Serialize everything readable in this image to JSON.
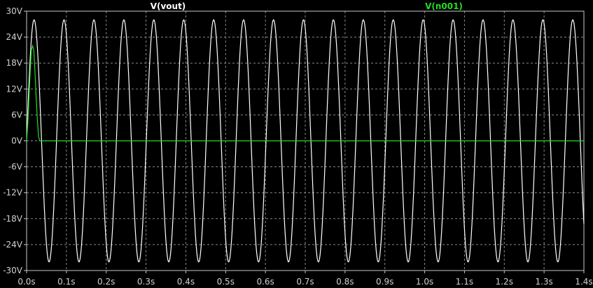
{
  "chart_data": {
    "type": "line",
    "xlim": [
      0,
      1.4
    ],
    "ylim": [
      -30,
      30
    ],
    "x_ticks": [
      0,
      0.1,
      0.2,
      0.3,
      0.4,
      0.5,
      0.6,
      0.7,
      0.8,
      0.9,
      1.0,
      1.1,
      1.2,
      1.3,
      1.4
    ],
    "x_tick_labels": [
      "0.0s",
      "0.1s",
      "0.2s",
      "0.3s",
      "0.4s",
      "0.5s",
      "0.6s",
      "0.7s",
      "0.8s",
      "0.9s",
      "1.0s",
      "1.1s",
      "1.2s",
      "1.3s",
      "1.4s"
    ],
    "y_ticks": [
      30,
      24,
      18,
      12,
      6,
      0,
      -6,
      -12,
      -18,
      -24,
      -30
    ],
    "y_tick_labels": [
      "30V",
      "24V",
      "18V",
      "12V",
      "6V",
      "0V",
      "-6V",
      "-12V",
      "-18V",
      "-24V",
      "-30V"
    ],
    "grid": true,
    "legend_position": "top",
    "series": [
      {
        "name": "V(vout)",
        "color": "#ffffff",
        "waveform": "sine",
        "amplitude": 28,
        "offset": 0,
        "frequency_hz": 13.3,
        "phase_deg": 0
      },
      {
        "name": "V(n001)",
        "color": "#22dd22",
        "waveform": "decaying-pulse",
        "points": [
          [
            0,
            0
          ],
          [
            0.003,
            4
          ],
          [
            0.006,
            10
          ],
          [
            0.009,
            16
          ],
          [
            0.012,
            21
          ],
          [
            0.015,
            22
          ],
          [
            0.018,
            21
          ],
          [
            0.021,
            16
          ],
          [
            0.024,
            10
          ],
          [
            0.027,
            5
          ],
          [
            0.03,
            1
          ],
          [
            0.033,
            0
          ],
          [
            1.4,
            0
          ]
        ]
      }
    ]
  },
  "colors": {
    "background": "#000000",
    "frame": "#c8c8c8",
    "grid": "#8a8a8a"
  }
}
